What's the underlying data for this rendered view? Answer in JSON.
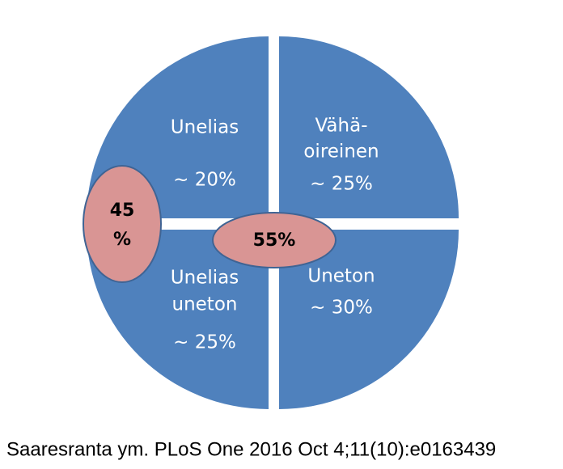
{
  "quadrants": [
    {
      "lines": [
        "Unelias"
      ],
      "share": "~ 20%"
    },
    {
      "lines": [
        "Vähä-",
        "oireinen"
      ],
      "share": "~ 25%"
    },
    {
      "lines": [
        "Unelias",
        "uneton"
      ],
      "share": "~ 25%"
    },
    {
      "lines": [
        "Uneton"
      ],
      "share": "~ 30%"
    }
  ],
  "groups": [
    {
      "lines": [
        "45",
        "%"
      ]
    },
    {
      "lines": [
        "55%"
      ]
    }
  ],
  "caption": "Saaresranta ym. PLoS One 2016 Oct 4;11(10):e0163439"
}
